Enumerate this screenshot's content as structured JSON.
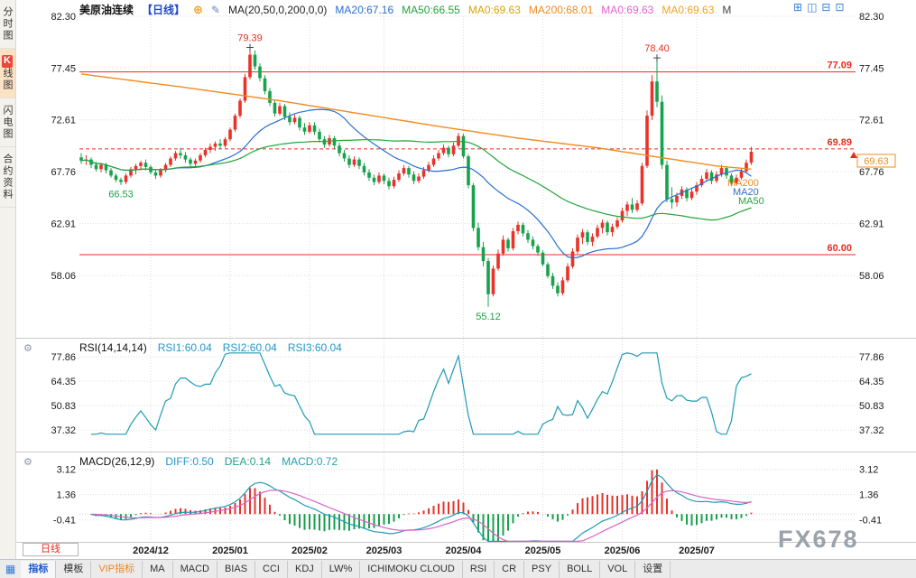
{
  "app": {
    "title": "美原油连续",
    "period_tag": "【日线】",
    "watermark": "FX678"
  },
  "icons": {
    "plus_circle": "⊕",
    "edit_note": "✎",
    "settings_gear": "⚙",
    "toolbar_grid": "▦"
  },
  "sidebar": {
    "tabs": [
      {
        "label": "分时图"
      },
      {
        "badge": "K",
        "label": "线图"
      },
      {
        "label": "闪电图"
      },
      {
        "label": "合约资料"
      }
    ]
  },
  "header": {
    "ma_settings": "MA(20,50,0,200,0,0)",
    "ma_values": [
      {
        "text": "MA20:67.16",
        "color": "#2a6fce"
      },
      {
        "text": "MA50:66.55",
        "color": "#23a53a"
      },
      {
        "text": "MA0:69.63",
        "color": "#d9a400"
      },
      {
        "text": "MA200:68.01",
        "color": "#f08c1e"
      },
      {
        "text": "MA0:69.63",
        "color": "#e95fd0"
      },
      {
        "text": "MA0:69.63",
        "color": "#f0a41e"
      },
      {
        "text": "M",
        "color": "#444444"
      }
    ],
    "window_icons": [
      {
        "name": "layout-single-icon",
        "glyph": "⊞"
      },
      {
        "name": "layout-split2-icon",
        "glyph": "◫"
      },
      {
        "name": "layout-split3-icon",
        "glyph": "⊟"
      },
      {
        "name": "layout-split4-icon",
        "glyph": "⊡"
      }
    ]
  },
  "rsi_panel": {
    "title": "RSI(14,14,14)",
    "values": [
      {
        "text": "RSI1:60.04",
        "color": "#2596c8"
      },
      {
        "text": "RSI2:60.04",
        "color": "#2596c8"
      },
      {
        "text": "RSI3:60.04",
        "color": "#2596c8"
      }
    ],
    "ticks": [
      77.86,
      64.35,
      50.83,
      37.32
    ]
  },
  "macd_panel": {
    "title": "MACD(26,12,9)",
    "values": [
      {
        "text": "DIFF:0.50",
        "color": "#2596c8"
      },
      {
        "text": "DEA:0.14",
        "color": "#23a08c"
      },
      {
        "text": "MACD:0.72",
        "color": "#23a0b4"
      }
    ],
    "ticks": [
      3.12,
      1.36,
      -0.41
    ]
  },
  "bottom": {
    "timeframe": "日线",
    "tabs": [
      {
        "text": "指标",
        "color": "#1a57c8"
      },
      {
        "text": "模板"
      },
      {
        "text": "VIP指标",
        "color": "#f08519"
      },
      {
        "text": "MA"
      },
      {
        "text": "MACD"
      },
      {
        "text": "BIAS"
      },
      {
        "text": "CCI"
      },
      {
        "text": "KDJ"
      },
      {
        "text": "LW%"
      },
      {
        "text": "ICHIMOKU CLOUD"
      },
      {
        "text": "RSI"
      },
      {
        "text": "CR"
      },
      {
        "text": "PSY"
      },
      {
        "text": "BOLL"
      },
      {
        "text": "VOL"
      },
      {
        "text": "设置"
      }
    ]
  },
  "chart_data": {
    "type": "candlestick",
    "symbol": "美原油连续",
    "period": "日线",
    "up_color": "#e8332a",
    "down_color": "#18a24c",
    "price_ticks": [
      82.3,
      77.45,
      72.61,
      67.76,
      62.91,
      58.06
    ],
    "x_ticks": [
      {
        "i": 14,
        "label": "2024/12"
      },
      {
        "i": 30,
        "label": "2025/01"
      },
      {
        "i": 46,
        "label": "2025/02"
      },
      {
        "i": 61,
        "label": "2025/03"
      },
      {
        "i": 77,
        "label": "2025/04"
      },
      {
        "i": 93,
        "label": "2025/05"
      },
      {
        "i": 109,
        "label": "2025/06"
      },
      {
        "i": 124,
        "label": "2025/07"
      }
    ],
    "levels": [
      {
        "price": 77.09,
        "label": "77.09",
        "dash": false,
        "color": "#e42f22"
      },
      {
        "price": 69.89,
        "label": "69.89",
        "dash": true,
        "color": "#e42f22"
      },
      {
        "price": 60.0,
        "label": "60.00",
        "dash": false,
        "color": "#e42f22"
      }
    ],
    "current_price": 69.63,
    "current_price_color": "#f08c1e",
    "annotations": [
      {
        "i": 8,
        "price": 66.53,
        "text": "66.53",
        "color": "#1ba14e",
        "pos": "below"
      },
      {
        "i": 34,
        "price": 79.39,
        "text": "79.39",
        "color": "#e42f22",
        "pos": "above"
      },
      {
        "i": 82,
        "price": 55.12,
        "text": "55.12",
        "color": "#1ba14e",
        "pos": "below"
      },
      {
        "i": 116,
        "price": 78.4,
        "text": "78.40",
        "color": "#e42f22",
        "pos": "above"
      }
    ],
    "ma": {
      "ma20_color": "#2a6fce",
      "ma50_color": "#23a53a",
      "ma200_color": "#f08c1e",
      "ma200_points": [
        [
          0,
          76.9
        ],
        [
          20,
          75.7
        ],
        [
          40,
          74.4
        ],
        [
          56,
          73.2
        ],
        [
          72,
          72.0
        ],
        [
          88,
          70.9
        ],
        [
          104,
          70.0
        ],
        [
          118,
          69.0
        ],
        [
          128,
          68.3
        ],
        [
          135,
          68.0
        ]
      ]
    },
    "ma_labels": [
      {
        "text": "MA200",
        "color": "#f08c1e",
        "x": 806,
        "y": 206
      },
      {
        "text": "MA20",
        "color": "#2a6fce",
        "x": 812,
        "y": 216
      },
      {
        "text": "MA50",
        "color": "#23a53a",
        "x": 818,
        "y": 226
      }
    ],
    "rsi": {
      "period": 14,
      "color": "#1f9bb4"
    },
    "macd": {
      "fast": 12,
      "slow": 26,
      "signal": 9,
      "diff_color": "#1f9bb4",
      "dea_color": "#d964c8",
      "pos_color": "#e8332a",
      "neg_color": "#16a04c"
    },
    "candles": [
      [
        69.1,
        69.5,
        68.5,
        68.8
      ],
      [
        68.8,
        69.3,
        68.4,
        68.9
      ],
      [
        68.9,
        69.1,
        68.1,
        68.4
      ],
      [
        68.4,
        68.7,
        67.8,
        68.0
      ],
      [
        68.0,
        68.6,
        67.7,
        68.4
      ],
      [
        68.4,
        68.6,
        67.6,
        67.9
      ],
      [
        67.9,
        68.1,
        67.2,
        67.4
      ],
      [
        67.4,
        67.6,
        66.8,
        67.0
      ],
      [
        67.0,
        67.2,
        66.53,
        66.8
      ],
      [
        66.8,
        67.6,
        66.6,
        67.4
      ],
      [
        67.4,
        68.2,
        67.2,
        68.0
      ],
      [
        68.0,
        68.5,
        67.5,
        68.3
      ],
      [
        68.3,
        68.8,
        67.9,
        68.6
      ],
      [
        68.6,
        68.9,
        67.9,
        68.2
      ],
      [
        68.2,
        68.4,
        67.5,
        67.7
      ],
      [
        67.7,
        68.0,
        67.1,
        67.4
      ],
      [
        67.4,
        68.1,
        67.2,
        67.9
      ],
      [
        67.9,
        68.6,
        67.7,
        68.4
      ],
      [
        68.4,
        69.2,
        68.2,
        69.0
      ],
      [
        69.0,
        69.7,
        68.8,
        69.5
      ],
      [
        69.5,
        70.0,
        69.0,
        69.3
      ],
      [
        69.3,
        69.6,
        68.6,
        68.9
      ],
      [
        68.9,
        69.1,
        68.2,
        68.5
      ],
      [
        68.5,
        69.0,
        68.1,
        68.8
      ],
      [
        68.8,
        69.5,
        68.6,
        69.3
      ],
      [
        69.3,
        70.0,
        69.1,
        69.8
      ],
      [
        69.8,
        70.4,
        69.5,
        70.1
      ],
      [
        70.1,
        70.6,
        69.7,
        70.4
      ],
      [
        70.4,
        70.8,
        69.9,
        70.2
      ],
      [
        70.2,
        71.0,
        70.0,
        70.8
      ],
      [
        70.8,
        71.9,
        70.6,
        71.7
      ],
      [
        71.7,
        73.2,
        71.5,
        73.0
      ],
      [
        73.0,
        74.6,
        72.8,
        74.4
      ],
      [
        74.4,
        76.9,
        74.2,
        76.6
      ],
      [
        76.6,
        79.39,
        76.4,
        78.7
      ],
      [
        78.7,
        79.1,
        77.3,
        77.6
      ],
      [
        77.6,
        77.9,
        76.2,
        76.5
      ],
      [
        76.5,
        76.8,
        75.0,
        75.3
      ],
      [
        75.3,
        75.6,
        73.9,
        74.2
      ],
      [
        74.2,
        74.5,
        72.9,
        73.2
      ],
      [
        73.2,
        74.2,
        73.0,
        73.9
      ],
      [
        73.9,
        74.1,
        72.6,
        72.9
      ],
      [
        72.9,
        73.3,
        72.1,
        72.4
      ],
      [
        72.4,
        73.1,
        72.2,
        72.8
      ],
      [
        72.8,
        73.0,
        71.6,
        71.9
      ],
      [
        71.9,
        72.3,
        71.2,
        71.5
      ],
      [
        71.5,
        72.4,
        71.3,
        72.1
      ],
      [
        72.1,
        72.4,
        71.2,
        71.5
      ],
      [
        71.5,
        71.8,
        70.5,
        70.8
      ],
      [
        70.8,
        71.1,
        70.0,
        70.3
      ],
      [
        70.3,
        71.2,
        70.1,
        70.9
      ],
      [
        70.9,
        71.1,
        69.9,
        70.2
      ],
      [
        70.2,
        70.5,
        69.2,
        69.5
      ],
      [
        69.5,
        69.8,
        68.7,
        69.0
      ],
      [
        69.0,
        69.3,
        68.1,
        68.4
      ],
      [
        68.4,
        69.2,
        68.2,
        68.9
      ],
      [
        68.9,
        69.1,
        68.0,
        68.3
      ],
      [
        68.3,
        68.6,
        67.4,
        67.7
      ],
      [
        67.7,
        68.0,
        66.9,
        67.2
      ],
      [
        67.2,
        67.5,
        66.5,
        66.8
      ],
      [
        66.8,
        67.7,
        66.6,
        67.4
      ],
      [
        67.4,
        67.6,
        66.6,
        66.9
      ],
      [
        66.9,
        67.2,
        66.1,
        66.4
      ],
      [
        66.4,
        67.3,
        66.2,
        67.0
      ],
      [
        67.0,
        67.9,
        66.8,
        67.6
      ],
      [
        67.6,
        68.4,
        67.4,
        68.1
      ],
      [
        68.1,
        68.3,
        67.2,
        67.5
      ],
      [
        67.5,
        67.8,
        66.6,
        66.9
      ],
      [
        66.9,
        67.6,
        66.7,
        67.3
      ],
      [
        67.3,
        68.2,
        67.1,
        67.9
      ],
      [
        67.9,
        68.7,
        67.7,
        68.4
      ],
      [
        68.4,
        69.3,
        68.2,
        69.0
      ],
      [
        69.0,
        69.8,
        68.8,
        69.5
      ],
      [
        69.5,
        70.3,
        69.3,
        70.0
      ],
      [
        70.0,
        70.2,
        69.1,
        69.4
      ],
      [
        69.4,
        70.5,
        69.2,
        70.2
      ],
      [
        70.2,
        71.4,
        70.0,
        71.1
      ],
      [
        71.1,
        71.3,
        69.0,
        69.2
      ],
      [
        69.2,
        69.4,
        66.2,
        66.5
      ],
      [
        66.5,
        66.7,
        62.2,
        62.5
      ],
      [
        62.5,
        63.0,
        60.4,
        60.7
      ],
      [
        60.7,
        61.2,
        58.9,
        59.4
      ],
      [
        59.4,
        59.7,
        55.12,
        56.3
      ],
      [
        56.3,
        59.0,
        56.1,
        58.7
      ],
      [
        58.7,
        60.5,
        58.5,
        60.1
      ],
      [
        60.1,
        61.8,
        59.9,
        61.4
      ],
      [
        61.4,
        61.6,
        60.3,
        60.6
      ],
      [
        60.6,
        62.5,
        60.4,
        62.2
      ],
      [
        62.2,
        63.1,
        61.9,
        62.8
      ],
      [
        62.8,
        63.0,
        61.7,
        62.0
      ],
      [
        62.0,
        62.3,
        61.1,
        61.4
      ],
      [
        61.4,
        61.7,
        60.5,
        60.8
      ],
      [
        60.8,
        61.0,
        59.9,
        60.2
      ],
      [
        60.2,
        60.4,
        58.9,
        59.1
      ],
      [
        59.1,
        59.3,
        57.8,
        58.0
      ],
      [
        58.0,
        58.3,
        56.8,
        57.1
      ],
      [
        57.1,
        57.4,
        56.1,
        56.4
      ],
      [
        56.4,
        57.9,
        56.2,
        57.6
      ],
      [
        57.6,
        59.2,
        57.4,
        58.9
      ],
      [
        58.9,
        60.6,
        58.7,
        60.3
      ],
      [
        60.3,
        61.9,
        60.1,
        61.6
      ],
      [
        61.6,
        62.4,
        61.0,
        62.1
      ],
      [
        62.1,
        62.3,
        60.9,
        61.2
      ],
      [
        61.2,
        62.0,
        60.8,
        61.7
      ],
      [
        61.7,
        62.8,
        61.5,
        62.5
      ],
      [
        62.5,
        63.3,
        62.0,
        63.0
      ],
      [
        63.0,
        63.2,
        61.8,
        62.1
      ],
      [
        62.1,
        62.9,
        61.7,
        62.6
      ],
      [
        62.6,
        63.5,
        62.4,
        63.2
      ],
      [
        63.2,
        64.4,
        63.0,
        64.1
      ],
      [
        64.1,
        65.0,
        63.6,
        64.7
      ],
      [
        64.7,
        65.3,
        63.9,
        64.2
      ],
      [
        64.2,
        65.1,
        64.0,
        64.8
      ],
      [
        64.8,
        68.6,
        64.6,
        68.3
      ],
      [
        68.3,
        73.5,
        68.1,
        73.0
      ],
      [
        73.0,
        76.8,
        72.6,
        76.2
      ],
      [
        76.2,
        78.4,
        73.8,
        74.3
      ],
      [
        74.3,
        74.9,
        68.0,
        68.4
      ],
      [
        68.4,
        68.8,
        64.9,
        65.2
      ],
      [
        65.2,
        66.3,
        64.3,
        64.9
      ],
      [
        64.9,
        65.8,
        64.5,
        65.5
      ],
      [
        65.5,
        66.4,
        65.2,
        66.1
      ],
      [
        66.1,
        66.3,
        65.0,
        65.3
      ],
      [
        65.3,
        66.2,
        65.1,
        65.9
      ],
      [
        65.9,
        66.8,
        65.6,
        66.5
      ],
      [
        66.5,
        67.4,
        66.3,
        67.1
      ],
      [
        67.1,
        68.0,
        66.9,
        67.7
      ],
      [
        67.7,
        67.9,
        66.6,
        66.9
      ],
      [
        66.9,
        67.8,
        66.7,
        67.5
      ],
      [
        67.5,
        68.4,
        67.3,
        68.1
      ],
      [
        68.1,
        68.3,
        67.1,
        67.4
      ],
      [
        67.4,
        67.6,
        66.4,
        66.7
      ],
      [
        66.7,
        67.5,
        66.5,
        67.2
      ],
      [
        67.2,
        68.1,
        67.0,
        67.8
      ],
      [
        67.8,
        68.9,
        67.6,
        68.6
      ],
      [
        68.6,
        70.1,
        68.4,
        69.63
      ]
    ]
  }
}
